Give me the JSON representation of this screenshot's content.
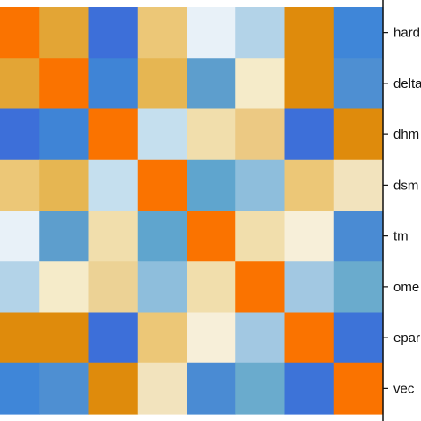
{
  "chart_data": {
    "type": "heatmap",
    "title": "",
    "xlabel": "",
    "ylabel": "",
    "y_tick_labels": [
      "hard",
      "delta",
      "dhm",
      "dsm",
      "tm",
      "ome",
      "epar",
      "vec"
    ],
    "y_axis_position": "right",
    "legend": "none",
    "grid": false,
    "cell_colors": [
      [
        "#fa7300",
        "#e3a535",
        "#3d6fd9",
        "#ecc777",
        "#e8f1f8",
        "#b3d3e8",
        "#df8b0c",
        "#3f86d8"
      ],
      [
        "#e3a535",
        "#fa7300",
        "#3f84d6",
        "#e6b652",
        "#5d9ecd",
        "#f5ebc9",
        "#df8b0c",
        "#4e8fd2"
      ],
      [
        "#3d6fd9",
        "#3f84d6",
        "#fa7300",
        "#c5dfee",
        "#f1deac",
        "#ecc983",
        "#3d6fd9",
        "#df8b0c"
      ],
      [
        "#ecc777",
        "#e6b652",
        "#c5dfee",
        "#fa7300",
        "#5fa5ce",
        "#8ebedc",
        "#ecc777",
        "#f2e3bd"
      ],
      [
        "#e8f1f8",
        "#5d9ecd",
        "#f1deac",
        "#5fa5ce",
        "#fa7300",
        "#f1deac",
        "#f7efd9",
        "#4a8bd3"
      ],
      [
        "#b3d3e8",
        "#f5ebc9",
        "#ecd295",
        "#8ebedc",
        "#f1deac",
        "#fa7300",
        "#a2c8e2",
        "#6aabcd"
      ],
      [
        "#df8b0c",
        "#df8b0c",
        "#3d6fd9",
        "#ecc777",
        "#f7efd9",
        "#a2c8e2",
        "#fa7300",
        "#3d73d8"
      ],
      [
        "#3f86d8",
        "#4e8fd2",
        "#df8b0c",
        "#f2e3bd",
        "#4a8bd3",
        "#6aabcd",
        "#3d73d8",
        "#fa7300"
      ]
    ]
  }
}
